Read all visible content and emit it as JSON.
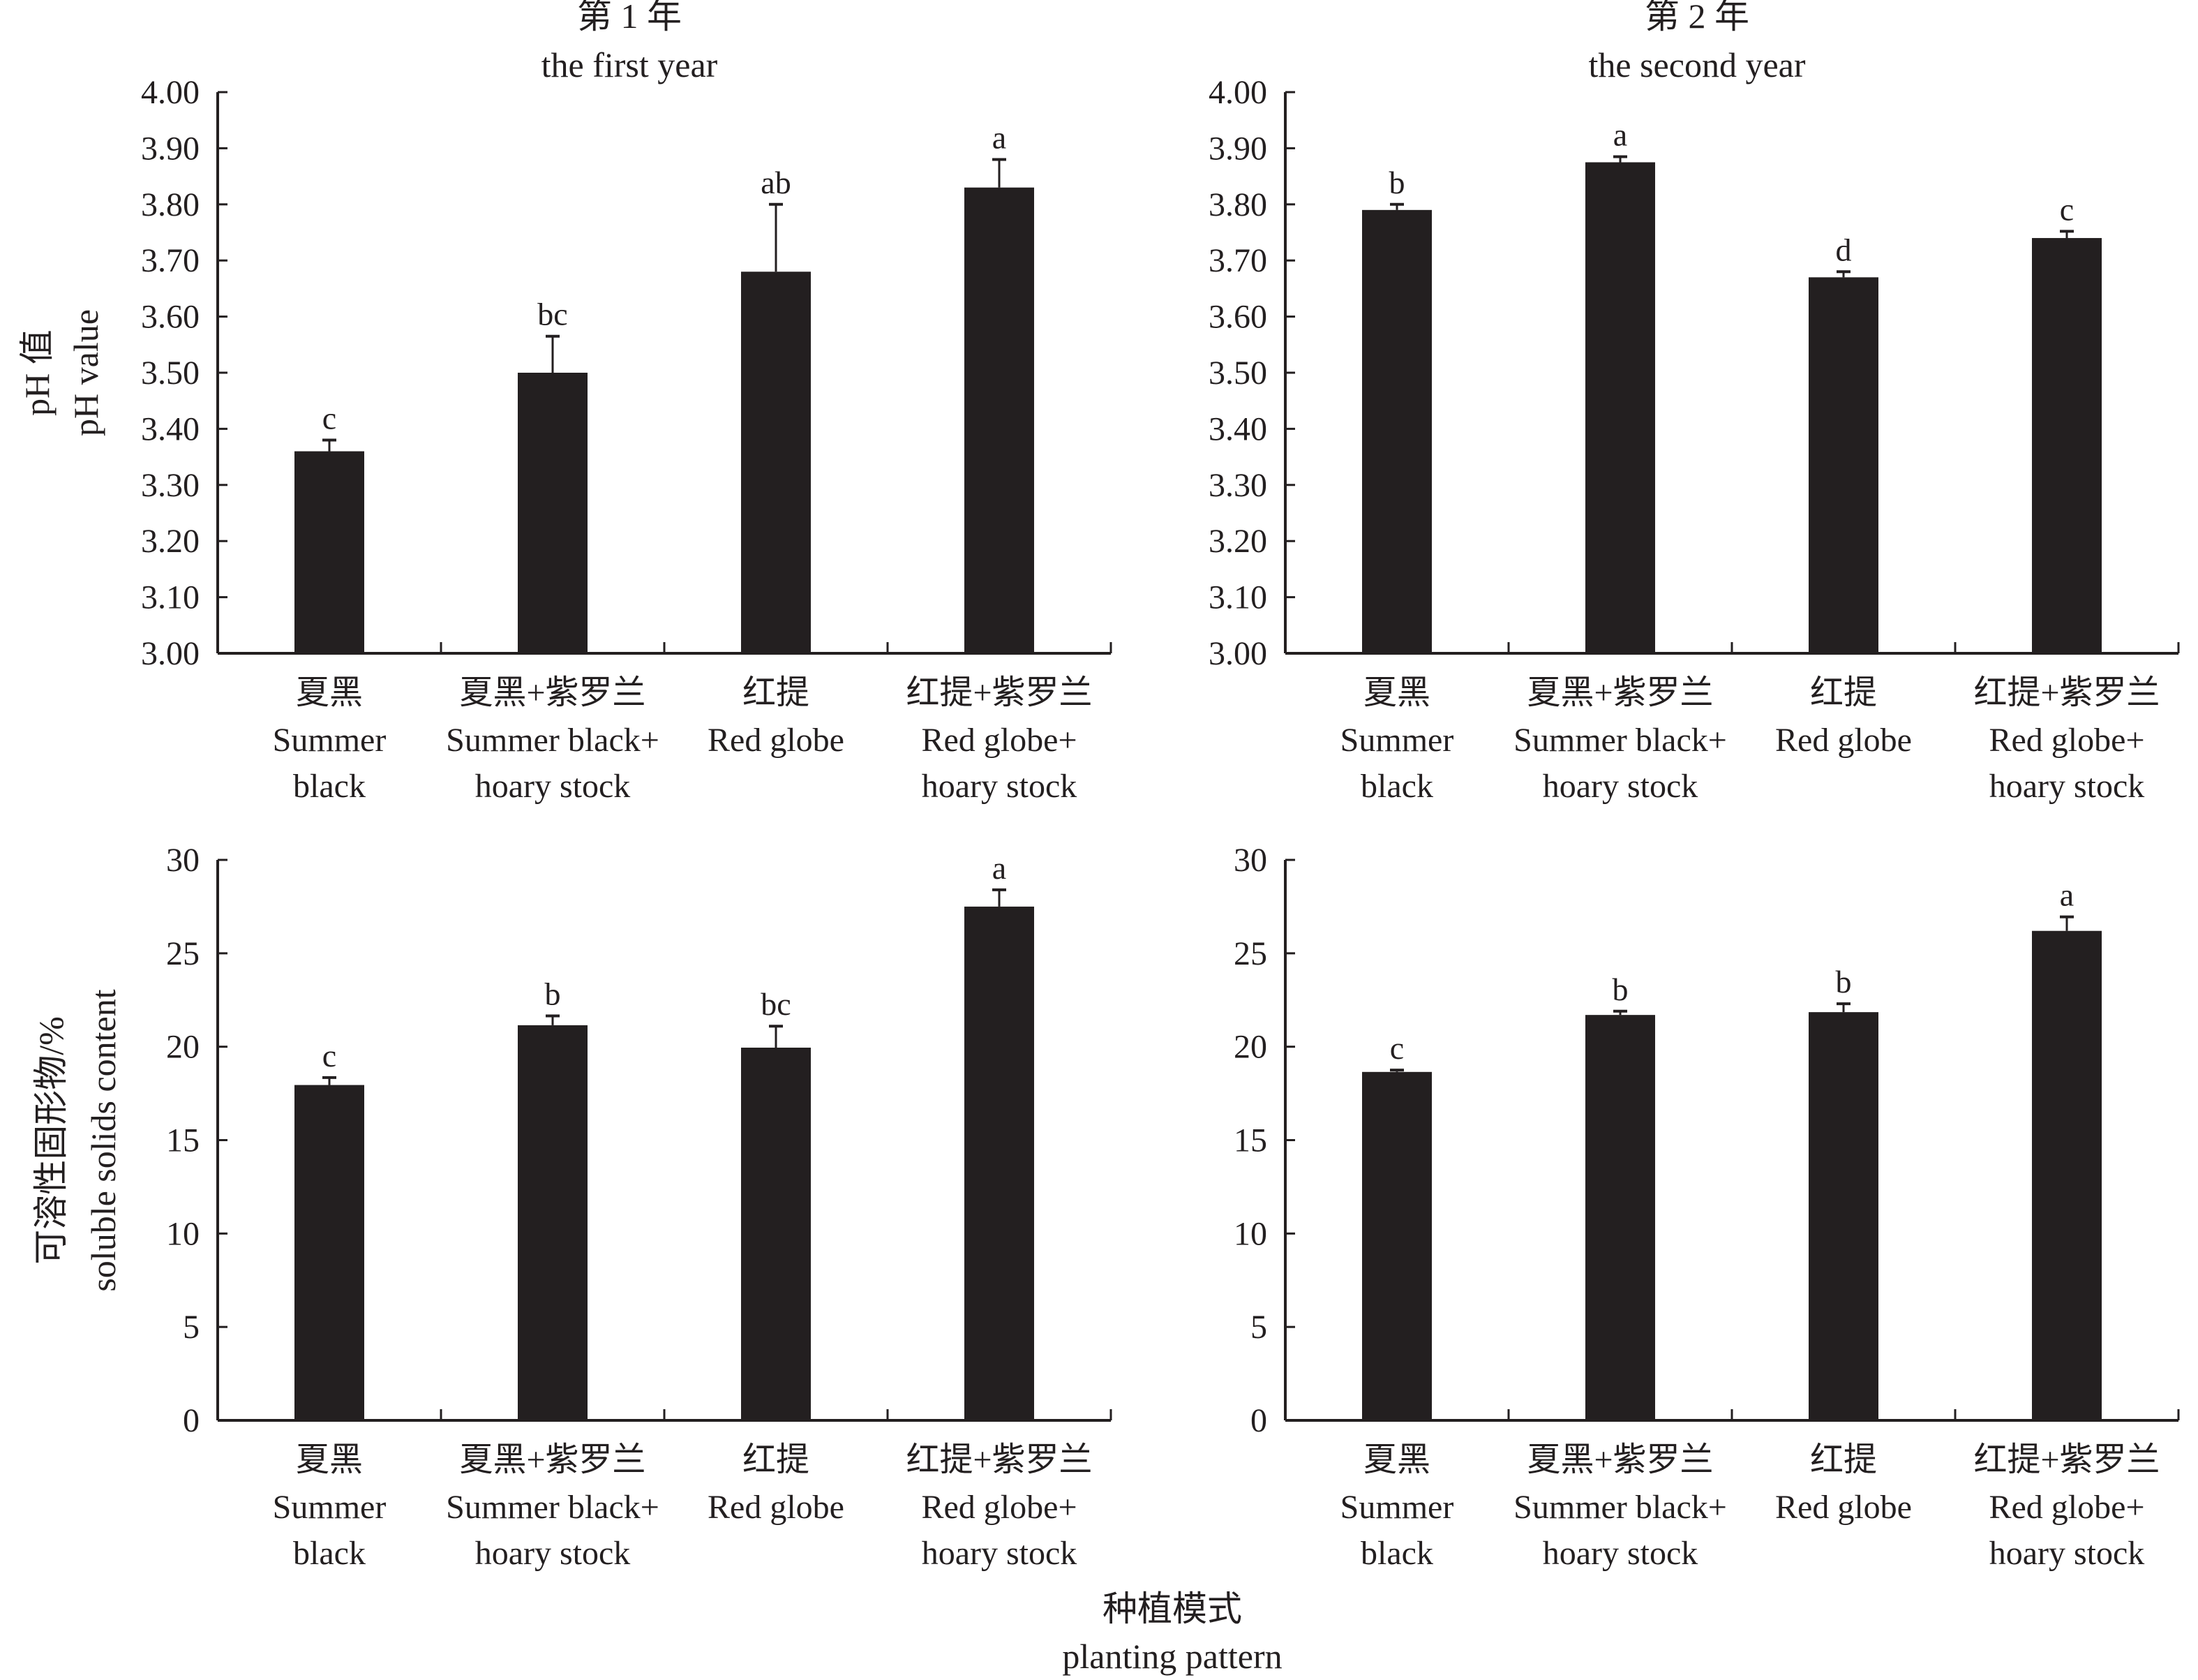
{
  "chart_data": [
    {
      "type": "bar",
      "panel": "top-left",
      "title_cn": "第 1 年",
      "title_en": "the first year",
      "ylabel_cn": "pH 值",
      "ylabel_en": "pH value",
      "ylim": [
        3.0,
        4.0
      ],
      "yticks": [
        "3.00",
        "3.10",
        "3.20",
        "3.30",
        "3.40",
        "3.50",
        "3.60",
        "3.70",
        "3.80",
        "3.90",
        "4.00"
      ],
      "categories": [
        {
          "cn": "夏黑",
          "en": [
            "Summer",
            "black"
          ]
        },
        {
          "cn": "夏黑+紫罗兰",
          "en": [
            "Summer black+",
            "hoary stock"
          ]
        },
        {
          "cn": "红提",
          "en": [
            "Red globe"
          ]
        },
        {
          "cn": "红提+紫罗兰",
          "en": [
            "Red globe+",
            "hoary stock"
          ]
        }
      ],
      "values": [
        3.36,
        3.5,
        3.68,
        3.83
      ],
      "errors": [
        0.02,
        0.065,
        0.12,
        0.05
      ],
      "letters": [
        "c",
        "bc",
        "ab",
        "a"
      ]
    },
    {
      "type": "bar",
      "panel": "top-right",
      "title_cn": "第 2 年",
      "title_en": "the second year",
      "ylabel_cn": "",
      "ylabel_en": "",
      "ylim": [
        3.0,
        4.0
      ],
      "yticks": [
        "3.00",
        "3.10",
        "3.20",
        "3.30",
        "3.40",
        "3.50",
        "3.60",
        "3.70",
        "3.80",
        "3.90",
        "4.00"
      ],
      "categories": [
        {
          "cn": "夏黑",
          "en": [
            "Summer",
            "black"
          ]
        },
        {
          "cn": "夏黑+紫罗兰",
          "en": [
            "Summer black+",
            "hoary stock"
          ]
        },
        {
          "cn": "红提",
          "en": [
            "Red globe"
          ]
        },
        {
          "cn": "红提+紫罗兰",
          "en": [
            "Red globe+",
            "hoary stock"
          ]
        }
      ],
      "values": [
        3.79,
        3.875,
        3.67,
        3.74
      ],
      "errors": [
        0.01,
        0.01,
        0.01,
        0.012
      ],
      "letters": [
        "b",
        "a",
        "d",
        "c"
      ]
    },
    {
      "type": "bar",
      "panel": "bottom-left",
      "title_cn": "",
      "title_en": "",
      "ylabel_cn": "可溶性固形物/%",
      "ylabel_en": "soluble solids content",
      "ylim": [
        0,
        30
      ],
      "yticks": [
        "0",
        "5",
        "10",
        "15",
        "20",
        "25",
        "30"
      ],
      "categories": [
        {
          "cn": "夏黑",
          "en": [
            "Summer",
            "black"
          ]
        },
        {
          "cn": "夏黑+紫罗兰",
          "en": [
            "Summer black+",
            "hoary stock"
          ]
        },
        {
          "cn": "红提",
          "en": [
            "Red globe"
          ]
        },
        {
          "cn": "红提+紫罗兰",
          "en": [
            "Red globe+",
            "hoary stock"
          ]
        }
      ],
      "values": [
        17.95,
        21.15,
        19.95,
        27.5
      ],
      "errors": [
        0.4,
        0.5,
        1.15,
        0.9
      ],
      "letters": [
        "c",
        "b",
        "bc",
        "a"
      ]
    },
    {
      "type": "bar",
      "panel": "bottom-right",
      "title_cn": "",
      "title_en": "",
      "ylabel_cn": "",
      "ylabel_en": "",
      "ylim": [
        0,
        30
      ],
      "yticks": [
        "0",
        "5",
        "10",
        "15",
        "20",
        "25",
        "30"
      ],
      "categories": [
        {
          "cn": "夏黑",
          "en": [
            "Summer",
            "black"
          ]
        },
        {
          "cn": "夏黑+紫罗兰",
          "en": [
            "Summer black+",
            "hoary stock"
          ]
        },
        {
          "cn": "红提",
          "en": [
            "Red globe"
          ]
        },
        {
          "cn": "红提+紫罗兰",
          "en": [
            "Red globe+",
            "hoary stock"
          ]
        }
      ],
      "values": [
        18.65,
        21.7,
        21.85,
        26.2
      ],
      "errors": [
        0.1,
        0.2,
        0.45,
        0.75
      ],
      "letters": [
        "c",
        "b",
        "b",
        "a"
      ]
    }
  ],
  "shared_xlabel": {
    "cn": "种植模式",
    "en": "planting pattern"
  },
  "colors": {
    "bar": "#231f20",
    "axis": "#231f20"
  }
}
